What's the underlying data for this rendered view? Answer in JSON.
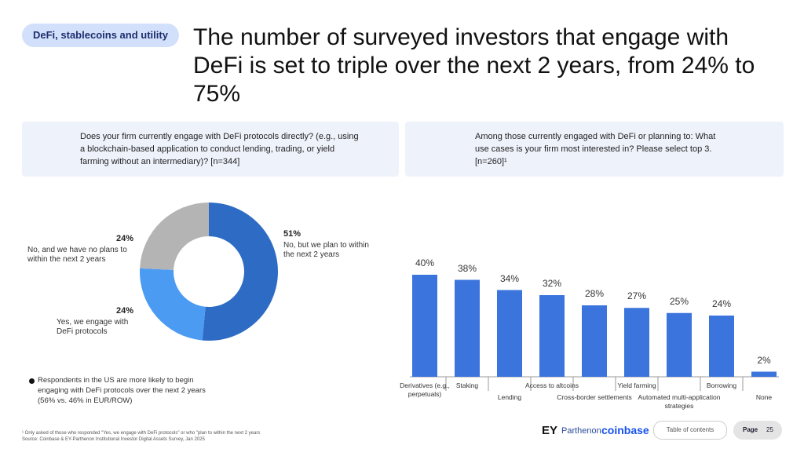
{
  "header": {
    "tag": "DeFi, stablecoins and utility",
    "title": "The number of surveyed investors that engage with DeFi is set to triple over the next 2 years, from 24% to 75%"
  },
  "chart_data": [
    {
      "type": "pie",
      "donut": true,
      "question": "Does your firm currently engage with DeFi protocols directly? (e.g., using a blockchain-based application to conduct lending, trading, or yield farming without an intermediary)? [n=344]",
      "categories": [
        "No, but we plan to within the next 2 years",
        "Yes, we engage with DeFi protocols",
        "No, and we have no plans to within the next 2 years"
      ],
      "values": [
        51,
        24,
        24
      ],
      "value_labels": [
        "51%",
        "24%",
        "24%"
      ],
      "colors": [
        "#2d6bc4",
        "#4b9bf2",
        "#b4b4b4"
      ]
    },
    {
      "type": "bar",
      "question": "Among those currently engaged with DeFi or planning to: What use cases is your firm most interested in? Please select top 3. [n=260]¹",
      "categories": [
        "Derivatives (e.g., perpetuals)",
        "Staking",
        "Lending",
        "Access to altcoins",
        "Cross-border settlements",
        "Yield farming",
        "Automated multi-application strategies",
        "Borrowing",
        "None"
      ],
      "values": [
        40,
        38,
        34,
        32,
        28,
        27,
        25,
        24,
        2
      ],
      "value_labels": [
        "40%",
        "38%",
        "34%",
        "32%",
        "28%",
        "27%",
        "25%",
        "24%",
        "2%"
      ],
      "color": "#3a74dc"
    }
  ],
  "note": "Respondents in the US are more likely to begin engaging with DeFi protocols over the next 2 years (56% vs. 46% in EUR/ROW)",
  "footnotes": [
    "¹ Only asked of those who responded \"Yes, we engage with DeFi protocols\" or who \"plan to within the next 2 years",
    "Source: Coinbase & EY-Parthenon Institutional Investor Digital Assets Survey, Jan 2025"
  ],
  "footer": {
    "brand_ey": "EY",
    "brand_parthenon": "Parthenon",
    "brand_coinbase": "coinbase",
    "toc": "Table of contents",
    "page_label": "Page",
    "page_number": "25"
  }
}
